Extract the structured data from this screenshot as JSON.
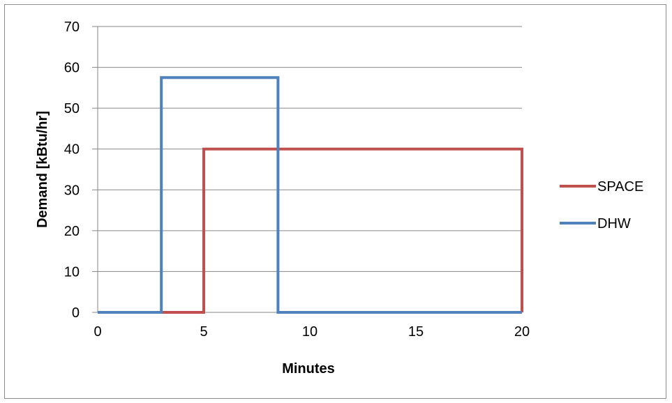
{
  "chart_data": {
    "type": "line",
    "title": "",
    "xlabel": "Minutes",
    "ylabel": "Demand [kBtu/hr]",
    "xlim": [
      0,
      20
    ],
    "ylim": [
      0,
      70
    ],
    "x_ticks": [
      0,
      5,
      10,
      15,
      20
    ],
    "y_ticks": [
      0,
      10,
      20,
      30,
      40,
      50,
      60,
      70
    ],
    "grid": "horizontal",
    "legend_position": "right",
    "series": [
      {
        "name": "SPACE",
        "color": "#c0504d",
        "points": [
          [
            0,
            0
          ],
          [
            5,
            0
          ],
          [
            5,
            40
          ],
          [
            20,
            40
          ],
          [
            20,
            0
          ]
        ]
      },
      {
        "name": "DHW",
        "color": "#4f81bd",
        "points": [
          [
            0,
            0
          ],
          [
            3,
            0
          ],
          [
            3,
            57.5
          ],
          [
            8.5,
            57.5
          ],
          [
            8.5,
            0
          ],
          [
            20,
            0
          ]
        ]
      }
    ]
  }
}
